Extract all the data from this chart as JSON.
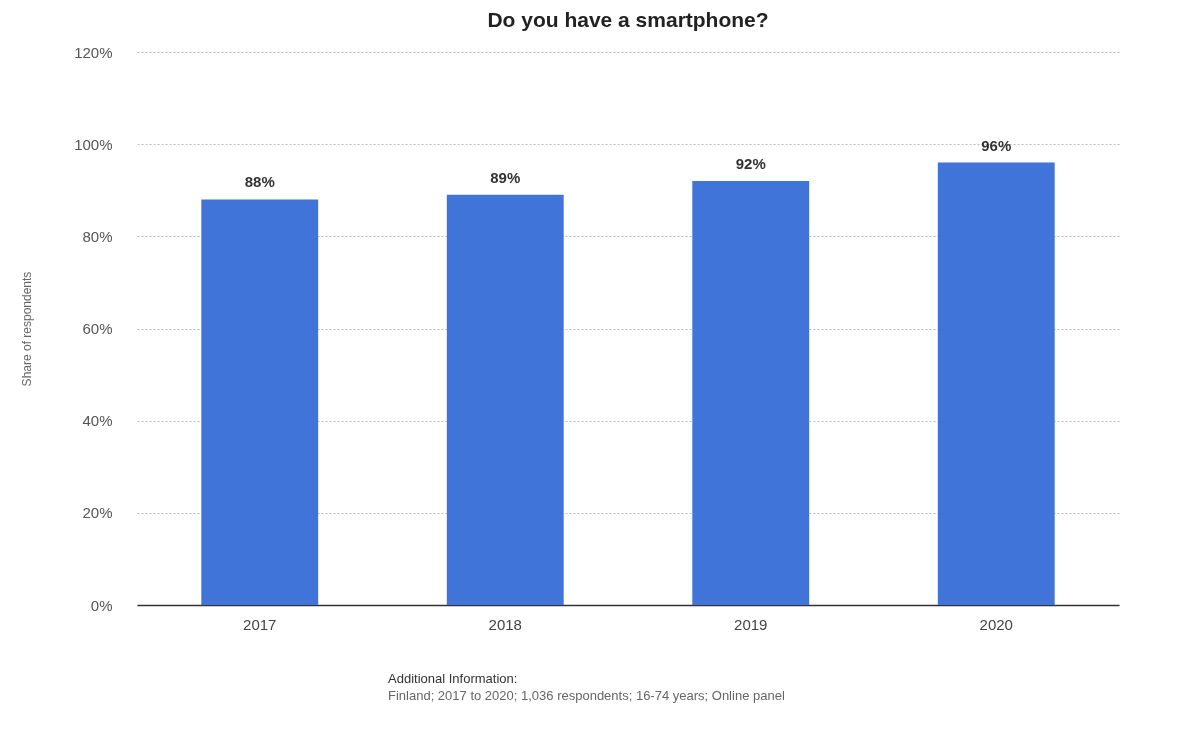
{
  "chart_data": {
    "type": "bar",
    "title": "Do you have a smartphone?",
    "ylabel": "Share of respondents",
    "categories": [
      "2017",
      "2018",
      "2019",
      "2020"
    ],
    "values": [
      88,
      89,
      92,
      96
    ],
    "value_labels": [
      "88%",
      "89%",
      "92%",
      "96%"
    ],
    "color": "#4074d8",
    "ylim": [
      0,
      120
    ],
    "yticks": [
      {
        "value": 0,
        "label": "0%"
      },
      {
        "value": 20,
        "label": "20%"
      },
      {
        "value": 40,
        "label": "40%"
      },
      {
        "value": 60,
        "label": "60%"
      },
      {
        "value": 80,
        "label": "80%"
      },
      {
        "value": 100,
        "label": "100%"
      },
      {
        "value": 120,
        "label": "120%"
      }
    ],
    "grid": "y",
    "annotations": [
      "Additional Information:",
      "Finland; 2017 to 2020; 1,036 respondents; 16-74 years; Online panel"
    ]
  }
}
